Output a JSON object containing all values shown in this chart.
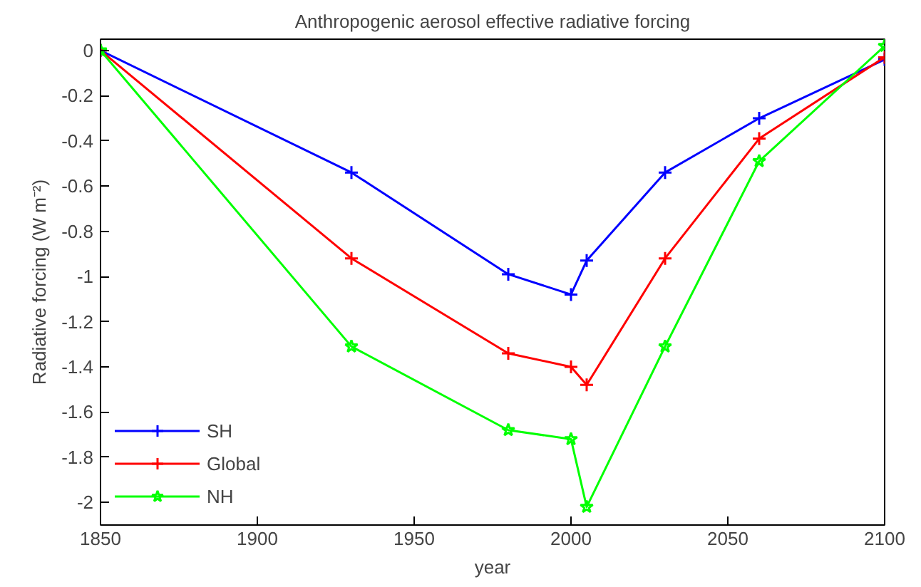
{
  "chart_data": {
    "type": "line",
    "title": "Anthropogenic aerosol effective radiative forcing",
    "xlabel": "year",
    "ylabel": "Radiative forcing (W m⁻²)",
    "x": [
      1850,
      1930,
      1980,
      2000,
      2005,
      2030,
      2060,
      2100
    ],
    "series": [
      {
        "name": "SH",
        "color": "#0000ff",
        "marker": "cross",
        "values": [
          0,
          -0.54,
          -0.99,
          -1.08,
          -0.93,
          -0.54,
          -0.3,
          -0.04
        ]
      },
      {
        "name": "Global",
        "color": "#ff0000",
        "marker": "cross",
        "values": [
          0,
          -0.92,
          -1.34,
          -1.4,
          -1.48,
          -0.92,
          -0.39,
          -0.03
        ]
      },
      {
        "name": "NH",
        "color": "#00ff00",
        "marker": "star",
        "values": [
          0,
          -1.31,
          -1.68,
          -1.72,
          -2.02,
          -1.31,
          -0.49,
          0.02
        ]
      }
    ],
    "xlim": [
      1850,
      2100
    ],
    "ylim": [
      -2.1,
      0.05
    ],
    "xticks": [
      1850,
      1900,
      1950,
      2000,
      2050,
      2100
    ],
    "yticks": [
      -2,
      -1.8,
      -1.6,
      -1.4,
      -1.2,
      -1,
      -0.8,
      -0.6,
      -0.4,
      -0.2,
      0
    ],
    "grid": false,
    "legend": "bottom left",
    "line_style": "solid"
  }
}
